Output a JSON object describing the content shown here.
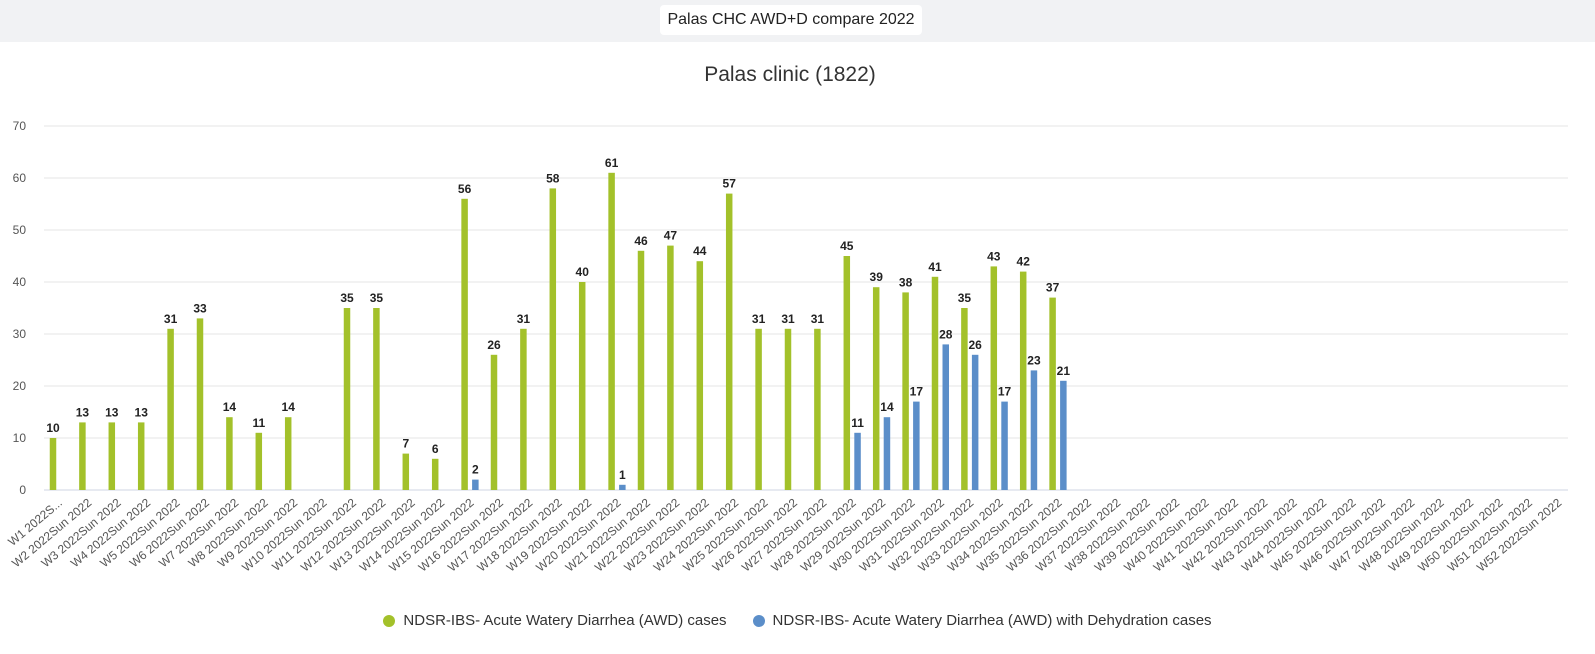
{
  "header": {
    "title": "Palas CHC AWD+D compare 2022"
  },
  "chart_data": {
    "type": "bar",
    "title": "Palas clinic (1822)",
    "xlabel": "",
    "ylabel": "",
    "ylim": [
      0,
      70
    ],
    "yticks": [
      0,
      10,
      20,
      30,
      40,
      50,
      60,
      70
    ],
    "grid": true,
    "legend_position": "bottom",
    "categories": [
      "W1 2022S...",
      "W2 2022Sun 2022",
      "W3 2022Sun 2022",
      "W4 2022Sun 2022",
      "W5 2022Sun 2022",
      "W6 2022Sun 2022",
      "W7 2022Sun 2022",
      "W8 2022Sun 2022",
      "W9 2022Sun 2022",
      "W10 2022Sun 2022",
      "W11 2022Sun 2022",
      "W12 2022Sun 2022",
      "W13 2022Sun 2022",
      "W14 2022Sun 2022",
      "W15 2022Sun 2022",
      "W16 2022Sun 2022",
      "W17 2022Sun 2022",
      "W18 2022Sun 2022",
      "W19 2022Sun 2022",
      "W20 2022Sun 2022",
      "W21 2022Sun 2022",
      "W22 2022Sun 2022",
      "W23 2022Sun 2022",
      "W24 2022Sun 2022",
      "W25 2022Sun 2022",
      "W26 2022Sun 2022",
      "W27 2022Sun 2022",
      "W28 2022Sun 2022",
      "W29 2022Sun 2022",
      "W30 2022Sun 2022",
      "W31 2022Sun 2022",
      "W32 2022Sun 2022",
      "W33 2022Sun 2022",
      "W34 2022Sun 2022",
      "W35 2022Sun 2022",
      "W36 2022Sun 2022",
      "W37 2022Sun 2022",
      "W38 2022Sun 2022",
      "W39 2022Sun 2022",
      "W40 2022Sun 2022",
      "W41 2022Sun 2022",
      "W42 2022Sun 2022",
      "W43 2022Sun 2022",
      "W44 2022Sun 2022",
      "W45 2022Sun 2022",
      "W46 2022Sun 2022",
      "W47 2022Sun 2022",
      "W48 2022Sun 2022",
      "W49 2022Sun 2022",
      "W50 2022Sun 2022",
      "W51 2022Sun 2022",
      "W52 2022Sun 2022"
    ],
    "series": [
      {
        "name": "NDSR-IBS- Acute Watery Diarrhea (AWD) cases",
        "color": "#a3c12a",
        "values": [
          10,
          13,
          13,
          13,
          31,
          33,
          14,
          11,
          14,
          null,
          35,
          35,
          7,
          6,
          56,
          26,
          31,
          58,
          40,
          61,
          46,
          47,
          44,
          57,
          31,
          31,
          31,
          45,
          39,
          38,
          41,
          35,
          43,
          42,
          37,
          null,
          null,
          null,
          null,
          null,
          null,
          null,
          null,
          null,
          null,
          null,
          null,
          null,
          null,
          null,
          null,
          null
        ]
      },
      {
        "name": "NDSR-IBS- Acute Watery Diarrhea (AWD) with Dehydration cases",
        "color": "#5b8ec9",
        "values": [
          null,
          null,
          null,
          null,
          null,
          null,
          null,
          null,
          null,
          null,
          null,
          null,
          null,
          null,
          2,
          null,
          null,
          null,
          null,
          1,
          null,
          null,
          null,
          null,
          null,
          null,
          null,
          11,
          14,
          17,
          28,
          26,
          17,
          23,
          21,
          null,
          null,
          null,
          null,
          null,
          null,
          null,
          null,
          null,
          null,
          null,
          null,
          null,
          null,
          null,
          null,
          null
        ]
      }
    ]
  }
}
